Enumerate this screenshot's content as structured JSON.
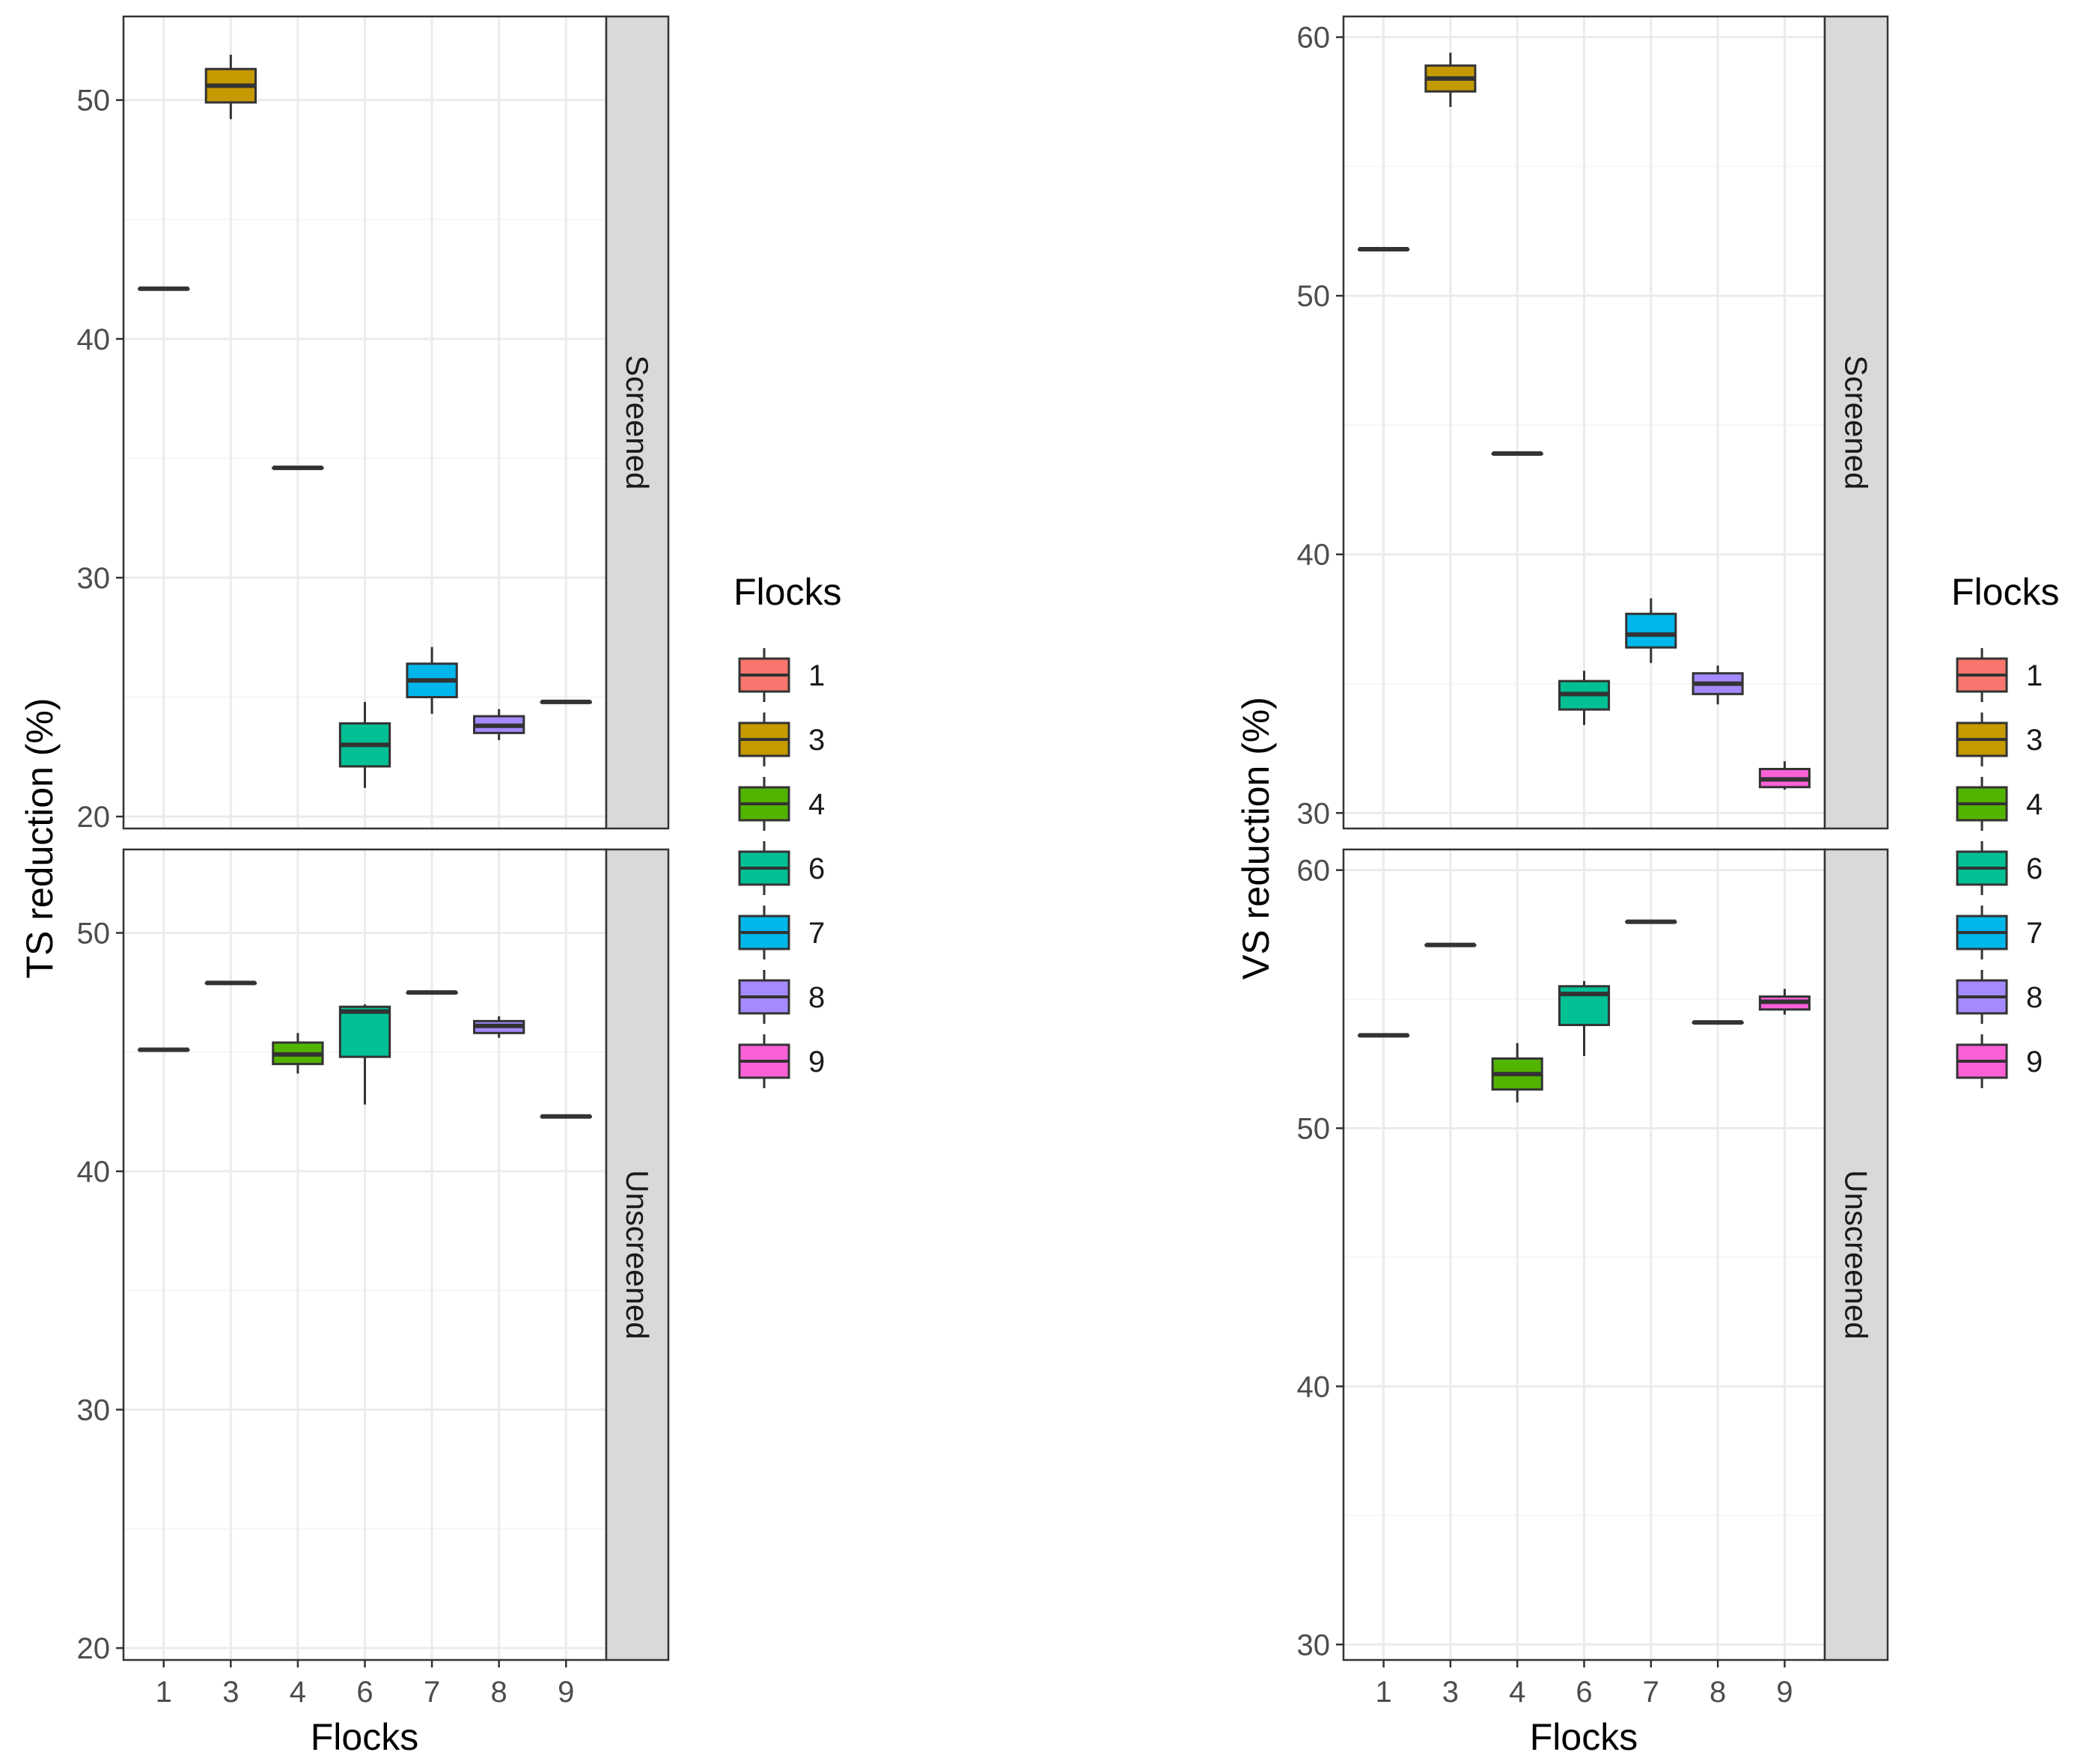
{
  "chart_data": [
    {
      "type": "boxplot",
      "ylabel": "TS reduction (%)",
      "xlabel": "Flocks",
      "categories": [
        "1",
        "3",
        "4",
        "6",
        "7",
        "8",
        "9"
      ],
      "ylim": [
        19.5,
        53.5
      ],
      "yticks": [
        20,
        30,
        40,
        50
      ],
      "grid": true,
      "legend": {
        "title": "Flocks",
        "position": "right",
        "entries": [
          "1",
          "3",
          "4",
          "6",
          "7",
          "8",
          "9"
        ]
      },
      "facets": [
        {
          "label": "Screened",
          "boxes": [
            {
              "flock": "1",
              "min": 42.1,
              "q1": 42.1,
              "median": 42.1,
              "q3": 42.1,
              "max": 42.1
            },
            {
              "flock": "3",
              "min": 49.2,
              "q1": 49.9,
              "median": 50.6,
              "q3": 51.3,
              "max": 51.9
            },
            {
              "flock": "4",
              "min": 34.6,
              "q1": 34.6,
              "median": 34.6,
              "q3": 34.6,
              "max": 34.6
            },
            {
              "flock": "6",
              "min": 21.2,
              "q1": 22.1,
              "median": 23.0,
              "q3": 23.9,
              "max": 24.8
            },
            {
              "flock": "7",
              "min": 24.3,
              "q1": 25.0,
              "median": 25.7,
              "q3": 26.4,
              "max": 27.1
            },
            {
              "flock": "8",
              "min": 23.2,
              "q1": 23.5,
              "median": 23.8,
              "q3": 24.2,
              "max": 24.5
            },
            {
              "flock": "9",
              "min": 24.8,
              "q1": 24.8,
              "median": 24.8,
              "q3": 24.8,
              "max": 24.8
            }
          ]
        },
        {
          "label": "Unscreened",
          "boxes": [
            {
              "flock": "1",
              "min": 45.1,
              "q1": 45.1,
              "median": 45.1,
              "q3": 45.1,
              "max": 45.1
            },
            {
              "flock": "3",
              "min": 47.9,
              "q1": 47.9,
              "median": 47.9,
              "q3": 47.9,
              "max": 47.9
            },
            {
              "flock": "4",
              "min": 44.1,
              "q1": 44.5,
              "median": 44.9,
              "q3": 45.4,
              "max": 45.8
            },
            {
              "flock": "6",
              "min": 42.8,
              "q1": 44.8,
              "median": 46.7,
              "q3": 46.9,
              "max": 47.0
            },
            {
              "flock": "7",
              "min": 47.5,
              "q1": 47.5,
              "median": 47.5,
              "q3": 47.5,
              "max": 47.5
            },
            {
              "flock": "8",
              "min": 45.6,
              "q1": 45.8,
              "median": 46.1,
              "q3": 46.3,
              "max": 46.5
            },
            {
              "flock": "9",
              "min": 42.3,
              "q1": 42.3,
              "median": 42.3,
              "q3": 42.3,
              "max": 42.3
            }
          ]
        }
      ]
    },
    {
      "type": "boxplot",
      "ylabel": "VS reduction (%)",
      "xlabel": "Flocks",
      "categories": [
        "1",
        "3",
        "4",
        "6",
        "7",
        "8",
        "9"
      ],
      "ylim": [
        29.4,
        60.8
      ],
      "yticks": [
        30,
        40,
        50,
        60
      ],
      "grid": true,
      "legend": {
        "title": "Flocks",
        "position": "right",
        "entries": [
          "1",
          "3",
          "4",
          "6",
          "7",
          "8",
          "9"
        ]
      },
      "facets": [
        {
          "label": "Screened",
          "boxes": [
            {
              "flock": "1",
              "min": 51.8,
              "q1": 51.8,
              "median": 51.8,
              "q3": 51.8,
              "max": 51.8
            },
            {
              "flock": "3",
              "min": 57.3,
              "q1": 57.9,
              "median": 58.4,
              "q3": 58.9,
              "max": 59.4
            },
            {
              "flock": "4",
              "min": 43.9,
              "q1": 43.9,
              "median": 43.9,
              "q3": 43.9,
              "max": 43.9
            },
            {
              "flock": "6",
              "min": 33.4,
              "q1": 34.0,
              "median": 34.6,
              "q3": 35.1,
              "max": 35.5
            },
            {
              "flock": "7",
              "min": 35.8,
              "q1": 36.4,
              "median": 36.9,
              "q3": 37.7,
              "max": 38.3
            },
            {
              "flock": "8",
              "min": 34.2,
              "q1": 34.6,
              "median": 35.0,
              "q3": 35.4,
              "max": 35.7
            },
            {
              "flock": "9",
              "min": 30.9,
              "q1": 31.0,
              "median": 31.3,
              "q3": 31.7,
              "max": 32.0
            }
          ]
        },
        {
          "label": "Unscreened",
          "boxes": [
            {
              "flock": "1",
              "min": 53.6,
              "q1": 53.6,
              "median": 53.6,
              "q3": 53.6,
              "max": 53.6
            },
            {
              "flock": "3",
              "min": 57.1,
              "q1": 57.1,
              "median": 57.1,
              "q3": 57.1,
              "max": 57.1
            },
            {
              "flock": "4",
              "min": 51.0,
              "q1": 51.5,
              "median": 52.1,
              "q3": 52.7,
              "max": 53.3
            },
            {
              "flock": "6",
              "min": 52.8,
              "q1": 54.0,
              "median": 55.2,
              "q3": 55.5,
              "max": 55.7
            },
            {
              "flock": "7",
              "min": 58.0,
              "q1": 58.0,
              "median": 58.0,
              "q3": 58.0,
              "max": 58.0
            },
            {
              "flock": "8",
              "min": 54.1,
              "q1": 54.1,
              "median": 54.1,
              "q3": 54.1,
              "max": 54.1
            },
            {
              "flock": "9",
              "min": 54.4,
              "q1": 54.6,
              "median": 54.9,
              "q3": 55.1,
              "max": 55.4
            }
          ]
        }
      ]
    }
  ],
  "colors": {
    "1": "#F8766D",
    "3": "#C49A00",
    "4": "#53B400",
    "6": "#00C094",
    "7": "#00B6EB",
    "8": "#A58AFF",
    "9": "#FB61D7",
    "strip_bg": "#D9D9D9",
    "grid_major": "#EBEBEB",
    "grid_minor": "#F5F5F5",
    "outline": "#333333",
    "box_line": "#333333"
  }
}
